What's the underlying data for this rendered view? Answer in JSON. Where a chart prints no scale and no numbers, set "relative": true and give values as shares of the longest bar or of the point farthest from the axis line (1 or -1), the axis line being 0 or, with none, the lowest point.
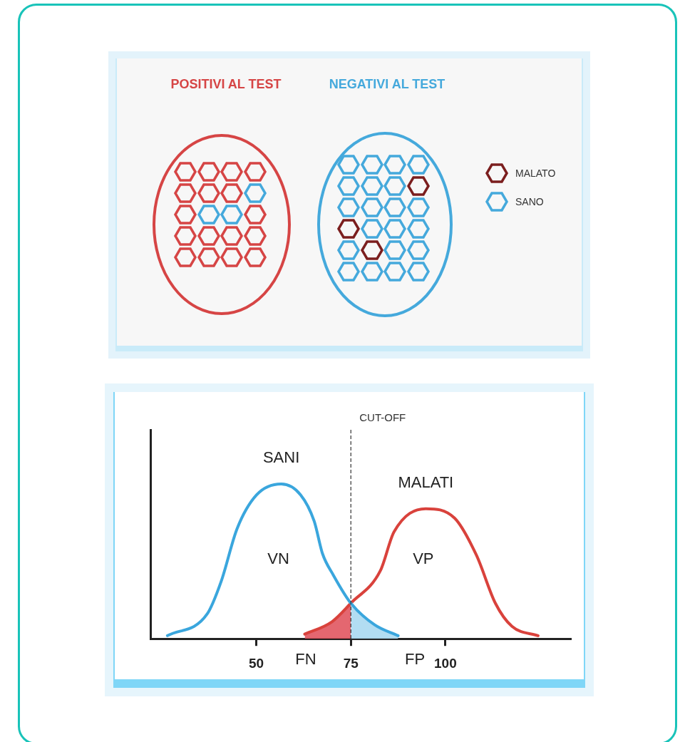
{
  "chart_data": [
    {
      "type": "other",
      "annotations": [
        "POSITIVI AL TEST",
        "NEGATIVI AL TEST",
        "MALATO",
        "SANO"
      ]
    },
    {
      "type": "line",
      "relative": true,
      "xlim": [
        22,
        133
      ],
      "xticks": [
        50,
        75,
        100
      ],
      "tick_labels": "x",
      "series": [
        {
          "name": "SANI",
          "color": "#3aa6dd",
          "x": [
            26.5,
            37,
            40.7,
            44.9,
            50.1,
            56.6,
            61.7,
            65.3,
            67.5,
            70.4,
            75,
            81.3,
            87.5
          ],
          "values": [
            0.02,
            0.16,
            0.37,
            0.71,
            0.93,
            1,
            0.93,
            0.76,
            0.55,
            0.41,
            0.23,
            0.09,
            0.02
          ]
        },
        {
          "name": "MALATI",
          "color": "#d9423c",
          "x": [
            62.8,
            70,
            75,
            82.8,
            86.4,
            94.8,
            102.4,
            108.2,
            113.2,
            117.6,
            124.5
          ],
          "values": [
            0.03,
            0.11,
            0.23,
            0.44,
            0.69,
            0.84,
            0.78,
            0.54,
            0.23,
            0.08,
            0.02
          ]
        },
        {
          "type": "area",
          "color": "#e0505a",
          "x": [
            62.8,
            70,
            75
          ],
          "values": [
            0.03,
            0.11,
            0.23
          ]
        },
        {
          "type": "area",
          "color": "#a6d8f0",
          "x": [
            75,
            81.3,
            87.5
          ],
          "values": [
            0.23,
            0.09,
            0.02
          ]
        }
      ],
      "ref_lines": [
        {
          "axis": "x",
          "value": 75,
          "label": "CUT-OFF",
          "line_style": "dashed",
          "color": "#333333"
        }
      ],
      "annotations": [
        "VN",
        "VP",
        "FN",
        "FP"
      ]
    }
  ]
}
